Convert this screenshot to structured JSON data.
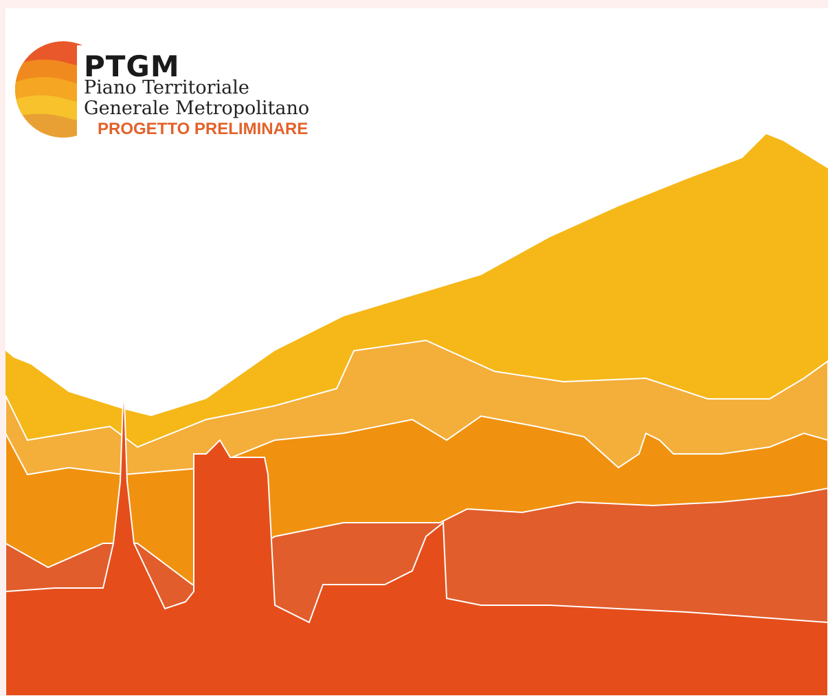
{
  "logo": {
    "acronym": "PTGM",
    "line1": "Piano Territoriale",
    "line2": "Generale Metropolitano",
    "stage": "PROGETTO PRELIMINARE"
  }
}
